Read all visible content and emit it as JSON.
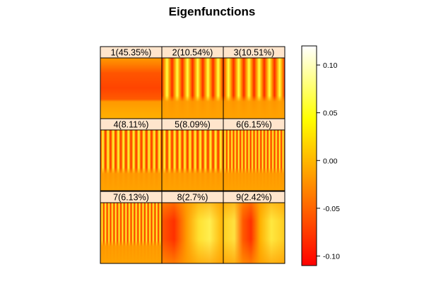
{
  "chart_data": {
    "type": "heatmap",
    "title": "Eigenfunctions",
    "panels": [
      {
        "label": "1(45.35%)",
        "pattern": "horizontal",
        "stripes": 0
      },
      {
        "label": "2(10.54%)",
        "pattern": "vertical",
        "stripes": 6
      },
      {
        "label": "3(10.51%)",
        "pattern": "vertical",
        "stripes": 6
      },
      {
        "label": "4(8.11%)",
        "pattern": "vertical",
        "stripes": 12
      },
      {
        "label": "5(8.09%)",
        "pattern": "vertical",
        "stripes": 12
      },
      {
        "label": "6(6.15%)",
        "pattern": "vertical",
        "stripes": 18
      },
      {
        "label": "7(6.13%)",
        "pattern": "vertical",
        "stripes": 18
      },
      {
        "label": "8(2.7%)",
        "pattern": "blob",
        "stripes": 0
      },
      {
        "label": "9(2.42%)",
        "pattern": "blob",
        "stripes": 0
      }
    ],
    "colorbar": {
      "range": [
        -0.11,
        0.12
      ],
      "ticks": [
        0.1,
        0.05,
        0.0,
        -0.05,
        -0.1
      ],
      "tick_labels": [
        "0.10",
        "0.05",
        "0.00",
        "-0.05",
        "-0.10"
      ],
      "colors": [
        "#ff0000",
        "#ff8000",
        "#ffff00",
        "#ffffff"
      ]
    },
    "strip_color": "#ffe5cc",
    "border_color": "#000000"
  }
}
